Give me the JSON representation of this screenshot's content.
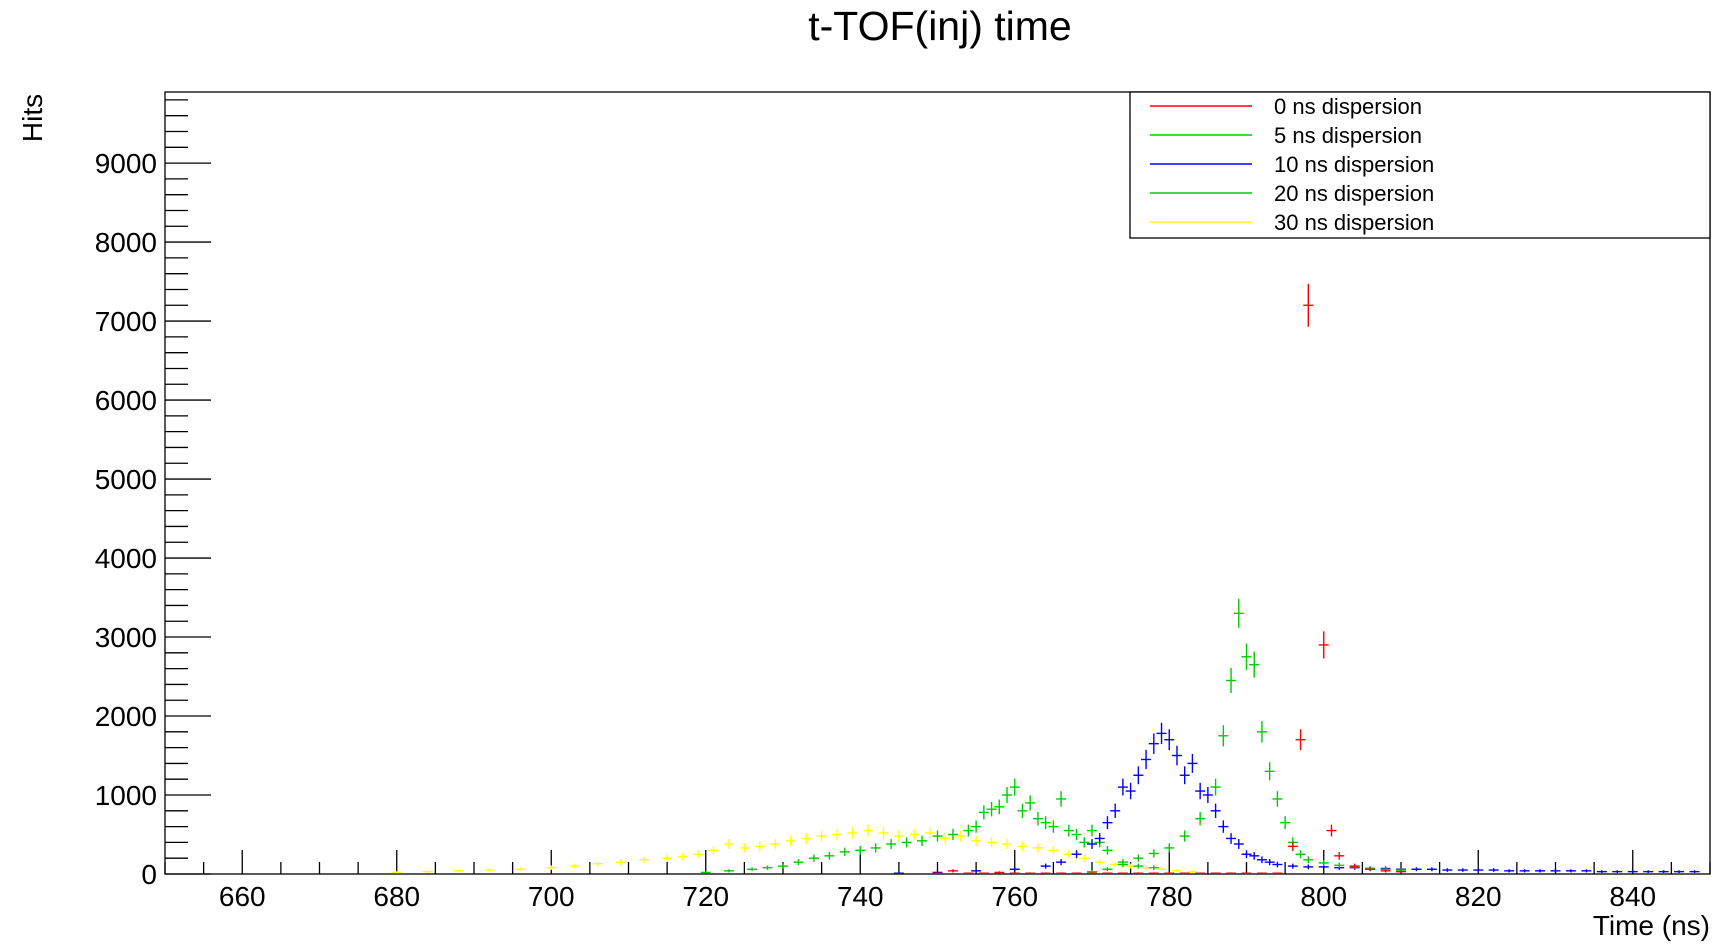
{
  "chart_data": {
    "type": "scatter",
    "style": "histogram-with-error-bars",
    "title": "t-TOF(inj) time",
    "xlabel": "Time (ns)",
    "ylabel": "Hits",
    "xlim": [
      650,
      850
    ],
    "ylim": [
      0,
      9900
    ],
    "x_ticks": [
      660,
      680,
      700,
      720,
      740,
      760,
      780,
      800,
      820,
      840
    ],
    "y_ticks": [
      0,
      1000,
      2000,
      3000,
      4000,
      5000,
      6000,
      7000,
      8000,
      9000
    ],
    "grid": false,
    "legend_position": "top-right",
    "series": [
      {
        "name": "0 ns dispersion",
        "color": "#ff0000",
        "x": [
          750,
          752,
          754,
          756,
          758,
          760,
          762,
          764,
          766,
          768,
          770,
          772,
          774,
          776,
          778,
          780,
          782,
          784,
          786,
          788,
          790,
          792,
          794,
          796,
          797,
          798,
          800,
          801,
          802,
          804,
          806,
          808,
          810
        ],
        "y": [
          10,
          40,
          10,
          10,
          20,
          10,
          10,
          10,
          10,
          10,
          10,
          10,
          10,
          10,
          10,
          10,
          10,
          10,
          10,
          10,
          10,
          10,
          10,
          350,
          1700,
          7200,
          2900,
          550,
          230,
          100,
          60,
          40,
          30
        ]
      },
      {
        "name": "5 ns dispersion",
        "color": "#00cc00",
        "x": [
          770,
          772,
          774,
          776,
          778,
          780,
          782,
          784,
          786,
          787,
          788,
          789,
          790,
          791,
          792,
          793,
          794,
          795,
          796,
          797,
          798,
          800,
          802,
          804,
          806,
          808,
          810
        ],
        "y": [
          30,
          60,
          120,
          200,
          260,
          330,
          480,
          700,
          1100,
          1750,
          2450,
          3300,
          2750,
          2650,
          1800,
          1300,
          950,
          650,
          400,
          250,
          180,
          140,
          110,
          90,
          70,
          60,
          50
        ]
      },
      {
        "name": "10 ns dispersion",
        "color": "#0000ff",
        "x": [
          745,
          750,
          755,
          760,
          764,
          766,
          768,
          770,
          771,
          772,
          773,
          774,
          775,
          776,
          777,
          778,
          779,
          780,
          781,
          782,
          783,
          784,
          785,
          786,
          787,
          788,
          789,
          790,
          791,
          792,
          793,
          794,
          796,
          798,
          800,
          802,
          804,
          806,
          808,
          810,
          812,
          814,
          816,
          818,
          820,
          822,
          824,
          826,
          828,
          830,
          832,
          834,
          836,
          838,
          840,
          842,
          844,
          846,
          848
        ],
        "y": [
          10,
          20,
          40,
          60,
          100,
          150,
          250,
          380,
          450,
          650,
          800,
          1100,
          1050,
          1250,
          1450,
          1650,
          1780,
          1700,
          1500,
          1250,
          1400,
          1050,
          1000,
          800,
          600,
          450,
          380,
          250,
          230,
          180,
          150,
          120,
          100,
          90,
          90,
          80,
          80,
          70,
          70,
          60,
          60,
          60,
          50,
          50,
          50,
          50,
          40,
          40,
          40,
          40,
          40,
          40,
          30,
          30,
          30,
          30,
          30,
          30,
          30
        ]
      },
      {
        "name": "20 ns dispersion",
        "color": "#00cc00",
        "x": [
          720,
          723,
          726,
          728,
          730,
          732,
          734,
          736,
          738,
          740,
          742,
          744,
          746,
          748,
          750,
          752,
          754,
          755,
          756,
          757,
          758,
          759,
          760,
          761,
          762,
          763,
          764,
          765,
          766,
          767,
          768,
          769,
          770,
          771,
          772,
          774,
          776,
          778
        ],
        "y": [
          20,
          40,
          60,
          80,
          100,
          150,
          200,
          230,
          280,
          300,
          330,
          380,
          400,
          420,
          480,
          500,
          550,
          600,
          780,
          820,
          850,
          1000,
          1100,
          800,
          900,
          700,
          650,
          600,
          950,
          550,
          500,
          400,
          550,
          400,
          300,
          150,
          100,
          80
        ]
      },
      {
        "name": "30 ns dispersion",
        "color": "#ffff00",
        "x": [
          680,
          684,
          688,
          692,
          696,
          700,
          703,
          706,
          709,
          712,
          715,
          717,
          719,
          721,
          723,
          725,
          727,
          729,
          731,
          733,
          735,
          737,
          739,
          741,
          743,
          745,
          747,
          749,
          751,
          753,
          755,
          757,
          759,
          761,
          763,
          765,
          767,
          769,
          771,
          773,
          775,
          777,
          779,
          781,
          783
        ],
        "y": [
          20,
          30,
          40,
          50,
          60,
          80,
          100,
          130,
          150,
          180,
          200,
          220,
          250,
          300,
          380,
          330,
          350,
          380,
          420,
          450,
          480,
          500,
          520,
          550,
          520,
          480,
          500,
          520,
          450,
          480,
          420,
          400,
          380,
          350,
          330,
          300,
          250,
          200,
          150,
          120,
          100,
          80,
          60,
          40,
          30
        ]
      }
    ]
  }
}
